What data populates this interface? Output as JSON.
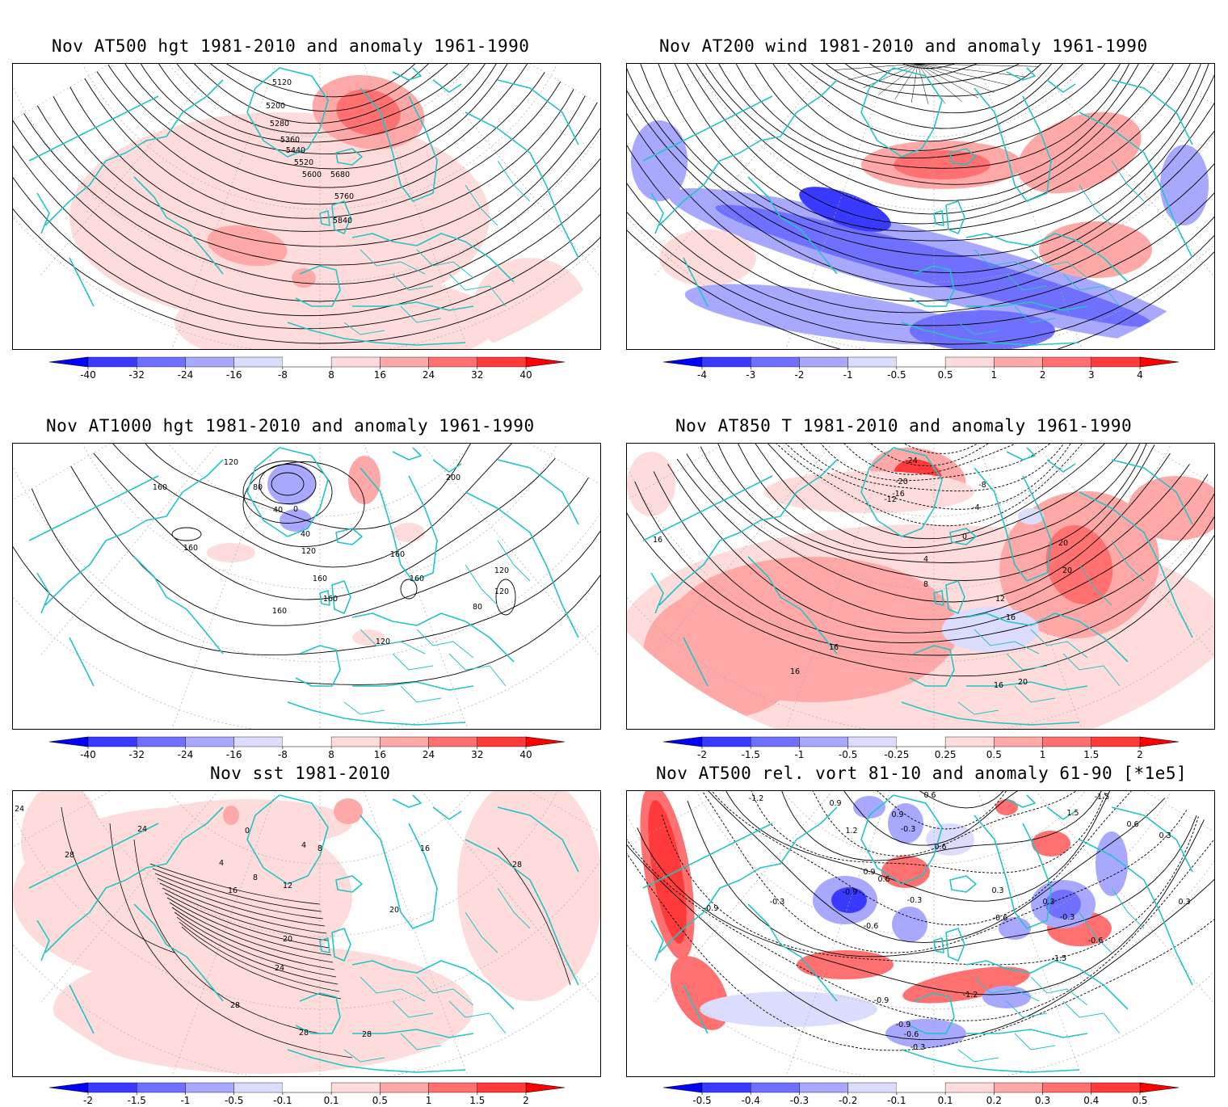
{
  "panels": [
    {
      "id": "p1",
      "title": "Nov AT500 hgt 1981-2010 and anomaly 1961-1990",
      "kind": "height",
      "contour_labels": [
        "5120",
        "5200",
        "5280",
        "5360",
        "5440",
        "5520",
        "5600",
        "5680",
        "5760",
        "5840"
      ],
      "colorbar": {
        "ticks": [
          "-40",
          "-32",
          "-24",
          "-16",
          "-8",
          "8",
          "16",
          "24",
          "32",
          "40"
        ]
      }
    },
    {
      "id": "p2",
      "title": "Nov AT200 wind 1981-2010 and anomaly 1961-1990",
      "kind": "wind",
      "contour_labels": [],
      "colorbar": {
        "ticks": [
          "-4",
          "-3",
          "-2",
          "-1",
          "-0.5",
          "0.5",
          "1",
          "2",
          "3",
          "4"
        ]
      }
    },
    {
      "id": "p3",
      "title": "Nov AT1000 hgt 1981-2010 and anomaly 1961-1990",
      "kind": "height1000",
      "contour_labels": [
        "120",
        "160",
        "80",
        "40",
        "0",
        "40",
        "120",
        "160",
        "160",
        "160",
        "120",
        "80",
        "160",
        "120",
        "120",
        "200",
        "160",
        "160"
      ],
      "colorbar": {
        "ticks": [
          "-40",
          "-32",
          "-24",
          "-16",
          "-8",
          "8",
          "16",
          "24",
          "32",
          "40"
        ]
      }
    },
    {
      "id": "p4",
      "title": "Nov AT850 T 1981-2010 and anomaly 1961-1990",
      "kind": "temp",
      "contour_labels": [
        "-24",
        "-20",
        "-16",
        "-12",
        "-8",
        "-4",
        "0",
        "4",
        "8",
        "12",
        "16",
        "20",
        "16",
        "16",
        "16",
        "20",
        "20",
        "16"
      ],
      "colorbar": {
        "ticks": [
          "-2",
          "-1.5",
          "-1",
          "-0.5",
          "-0.25",
          "0.25",
          "0.5",
          "1",
          "1.5",
          "2"
        ]
      }
    },
    {
      "id": "p5",
      "title": "Nov sst 1981-2010",
      "kind": "sst",
      "contour_labels": [
        "24",
        "24",
        "28",
        "0",
        "4",
        "4",
        "8",
        "12",
        "16",
        "20",
        "20",
        "24",
        "28",
        "28",
        "28",
        "28",
        "16",
        "8"
      ],
      "colorbar": {
        "ticks": [
          "-2",
          "-1.5",
          "-1",
          "-0.5",
          "-0.1",
          "0.1",
          "0.5",
          "1",
          "1.5",
          "2"
        ]
      }
    },
    {
      "id": "p6",
      "title": "Nov AT500 rel. vort 81-10 and anomaly 61-90 [*1e5]",
      "kind": "vort",
      "contour_labels": [
        "-1.2",
        "0.9",
        "0.6",
        "0.9",
        "1.2",
        "-0.3",
        "0.6",
        "0.9",
        "0.6",
        "-0.9",
        "-0.6",
        "-0.3",
        "-0.9",
        "-0.3",
        "0.3",
        "-0.6",
        "-1.5",
        "0.3",
        "-0.3",
        "-0.9",
        "-1.2",
        "-0.9",
        "-0.6",
        "-0.3",
        "1.5",
        "-1.5",
        "0.6",
        "0.3",
        "-0.6",
        "0.3"
      ],
      "colorbar": {
        "ticks": [
          "-0.5",
          "-0.4",
          "-0.3",
          "-0.2",
          "-0.1",
          "0.1",
          "0.2",
          "0.3",
          "0.4",
          "0.5"
        ]
      }
    }
  ],
  "colors": {
    "coastline": "#22c4c4",
    "grid": "#aaaaaa",
    "contour": "#000000",
    "colorbar_neg": [
      "#0000ff",
      "#3a3aff",
      "#7070ff",
      "#a8a8ff",
      "#dcdcff"
    ],
    "colorbar_pos": [
      "#ffdcdc",
      "#ffa8a8",
      "#ff7070",
      "#ff3a3a",
      "#ff0000"
    ]
  }
}
